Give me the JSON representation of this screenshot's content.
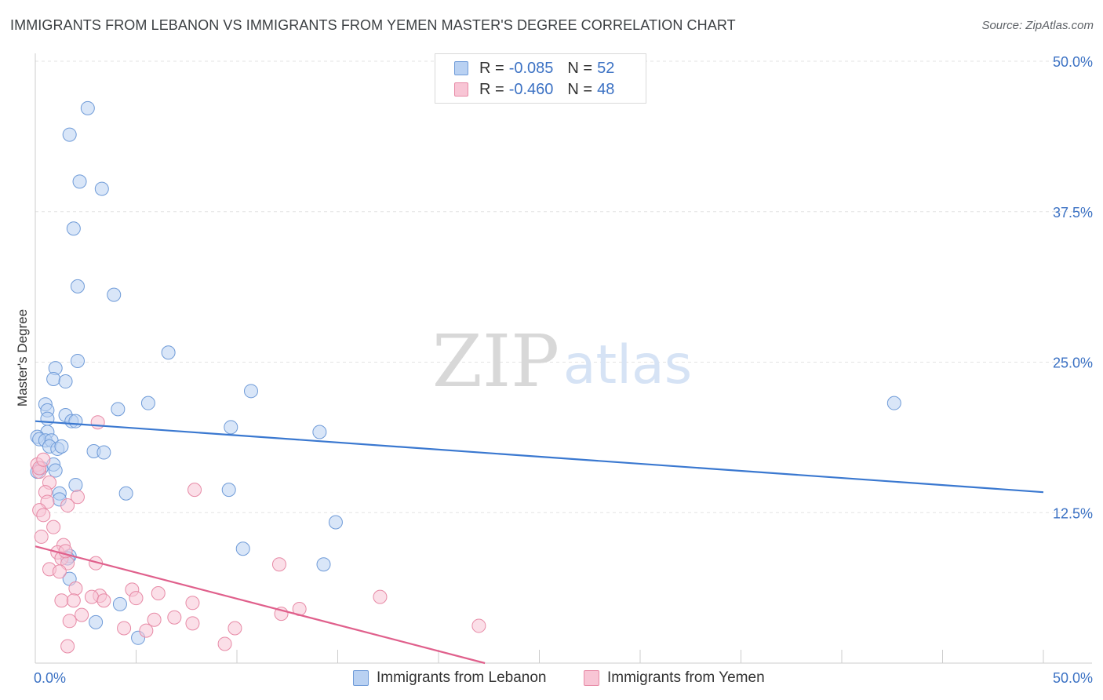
{
  "title": "IMMIGRANTS FROM LEBANON VS IMMIGRANTS FROM YEMEN MASTER'S DEGREE CORRELATION CHART",
  "source": "Source: ZipAtlas.com",
  "watermark": {
    "zip": "ZIP",
    "atlas": "atlas"
  },
  "legend": {
    "r_label": "R =",
    "n_label": "N =",
    "rows": [
      {
        "r": "-0.085",
        "n": "52",
        "fill": "#b9d1f2",
        "stroke": "#6f9bd8"
      },
      {
        "r": "-0.460",
        "n": "48",
        "fill": "#f8c5d5",
        "stroke": "#e78aa6"
      }
    ]
  },
  "chart_data": {
    "type": "scatter",
    "title": "IMMIGRANTS FROM LEBANON VS IMMIGRANTS FROM YEMEN MASTER'S DEGREE CORRELATION CHART",
    "xlabel": "",
    "ylabel": "Master's Degree",
    "xlim": [
      0,
      50
    ],
    "ylim": [
      0,
      50
    ],
    "x_tick_labels": [
      "0.0%",
      "50.0%"
    ],
    "y_ticks": [
      12.5,
      25.0,
      37.5,
      50.0
    ],
    "y_tick_labels": [
      "12.5%",
      "25.0%",
      "37.5%",
      "50.0%"
    ],
    "series": [
      {
        "name": "Immigrants from Lebanon",
        "color": "#6f9bd8",
        "fill": "#b9d1f2",
        "line_color": "#3a78d0",
        "trend": {
          "x": [
            0,
            50
          ],
          "y": [
            20.1,
            14.2
          ]
        },
        "points": [
          [
            2.6,
            46.1
          ],
          [
            1.7,
            43.9
          ],
          [
            2.2,
            40.0
          ],
          [
            3.3,
            39.4
          ],
          [
            1.9,
            36.1
          ],
          [
            2.1,
            31.3
          ],
          [
            3.9,
            30.6
          ],
          [
            6.6,
            25.8
          ],
          [
            2.1,
            25.1
          ],
          [
            1.0,
            24.5
          ],
          [
            0.9,
            23.6
          ],
          [
            1.5,
            23.4
          ],
          [
            10.7,
            22.6
          ],
          [
            5.6,
            21.6
          ],
          [
            0.5,
            21.5
          ],
          [
            0.6,
            21.0
          ],
          [
            4.1,
            21.1
          ],
          [
            1.5,
            20.6
          ],
          [
            0.6,
            20.3
          ],
          [
            1.8,
            20.1
          ],
          [
            2.0,
            20.1
          ],
          [
            9.7,
            19.6
          ],
          [
            14.1,
            19.2
          ],
          [
            0.6,
            19.2
          ],
          [
            0.1,
            18.8
          ],
          [
            0.2,
            18.6
          ],
          [
            0.5,
            18.5
          ],
          [
            0.8,
            18.5
          ],
          [
            0.7,
            18.0
          ],
          [
            1.1,
            17.8
          ],
          [
            1.3,
            18.0
          ],
          [
            2.9,
            17.6
          ],
          [
            3.4,
            17.5
          ],
          [
            0.3,
            16.2
          ],
          [
            0.9,
            16.5
          ],
          [
            1.0,
            16.0
          ],
          [
            0.1,
            15.9
          ],
          [
            2.0,
            14.8
          ],
          [
            9.6,
            14.4
          ],
          [
            4.5,
            14.1
          ],
          [
            1.2,
            14.1
          ],
          [
            1.2,
            13.6
          ],
          [
            14.9,
            11.7
          ],
          [
            10.3,
            9.5
          ],
          [
            1.7,
            8.9
          ],
          [
            1.7,
            7.0
          ],
          [
            14.3,
            8.2
          ],
          [
            1.6,
            8.7
          ],
          [
            4.2,
            4.9
          ],
          [
            3.0,
            3.4
          ],
          [
            5.1,
            2.1
          ],
          [
            42.6,
            21.6
          ]
        ]
      },
      {
        "name": "Immigrants from Yemen",
        "color": "#e78aa6",
        "fill": "#f8c5d5",
        "line_color": "#e0608c",
        "trend": {
          "x": [
            0,
            22.3
          ],
          "y": [
            9.7,
            0
          ]
        },
        "points": [
          [
            0.1,
            16.5
          ],
          [
            0.2,
            15.9
          ],
          [
            0.7,
            15.0
          ],
          [
            3.1,
            20.0
          ],
          [
            7.9,
            14.4
          ],
          [
            0.5,
            14.2
          ],
          [
            2.1,
            13.8
          ],
          [
            0.6,
            13.4
          ],
          [
            1.6,
            13.1
          ],
          [
            0.2,
            12.7
          ],
          [
            0.4,
            12.3
          ],
          [
            0.9,
            11.3
          ],
          [
            0.3,
            10.5
          ],
          [
            1.4,
            9.8
          ],
          [
            1.1,
            9.2
          ],
          [
            1.3,
            8.7
          ],
          [
            1.6,
            8.3
          ],
          [
            3.0,
            8.3
          ],
          [
            12.1,
            8.2
          ],
          [
            0.7,
            7.8
          ],
          [
            1.2,
            7.6
          ],
          [
            2.0,
            6.2
          ],
          [
            4.8,
            6.1
          ],
          [
            6.1,
            5.8
          ],
          [
            3.2,
            5.6
          ],
          [
            2.8,
            5.5
          ],
          [
            5.0,
            5.4
          ],
          [
            17.1,
            5.5
          ],
          [
            1.3,
            5.2
          ],
          [
            1.9,
            5.2
          ],
          [
            3.4,
            5.2
          ],
          [
            7.8,
            5.0
          ],
          [
            13.1,
            4.5
          ],
          [
            12.2,
            4.1
          ],
          [
            2.3,
            4.0
          ],
          [
            6.9,
            3.8
          ],
          [
            5.9,
            3.6
          ],
          [
            1.7,
            3.5
          ],
          [
            7.8,
            3.3
          ],
          [
            4.4,
            2.9
          ],
          [
            9.9,
            2.9
          ],
          [
            5.5,
            2.7
          ],
          [
            22.0,
            3.1
          ],
          [
            9.4,
            1.6
          ],
          [
            1.6,
            1.4
          ],
          [
            0.2,
            16.2
          ],
          [
            0.4,
            16.9
          ],
          [
            1.5,
            9.3
          ]
        ]
      }
    ]
  }
}
